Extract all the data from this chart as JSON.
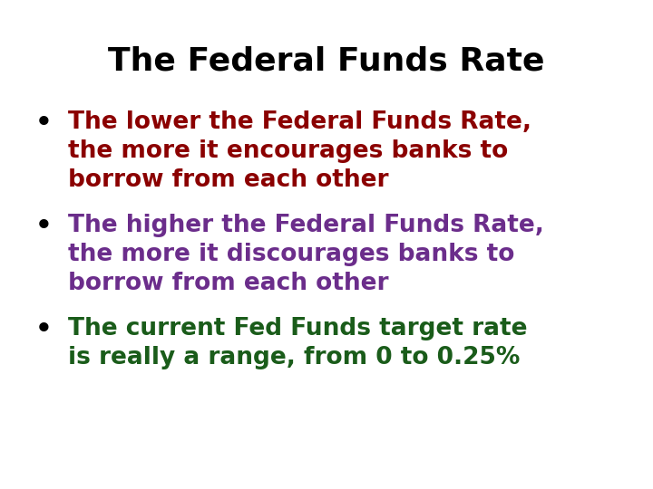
{
  "title": "The Federal Funds Rate",
  "title_color": "#000000",
  "title_fontsize": 26,
  "background_color": "#ffffff",
  "bullet_color": "#000000",
  "bullets": [
    {
      "lines": [
        "The lower the Federal Funds Rate,",
        "the more it encourages banks to",
        "borrow from each other"
      ],
      "color": "#8B0000"
    },
    {
      "lines": [
        "The higher the Federal Funds Rate,",
        "the more it discourages banks to",
        "borrow from each other"
      ],
      "color": "#6B2D8B"
    },
    {
      "lines": [
        "The current Fed Funds target rate",
        "is really a range, from 0 to 0.25%"
      ],
      "color": "#1A5C1A"
    }
  ],
  "bullet_fontsize": 19,
  "bullet_symbol": "•",
  "figsize": [
    7.2,
    5.4
  ],
  "dpi": 100
}
